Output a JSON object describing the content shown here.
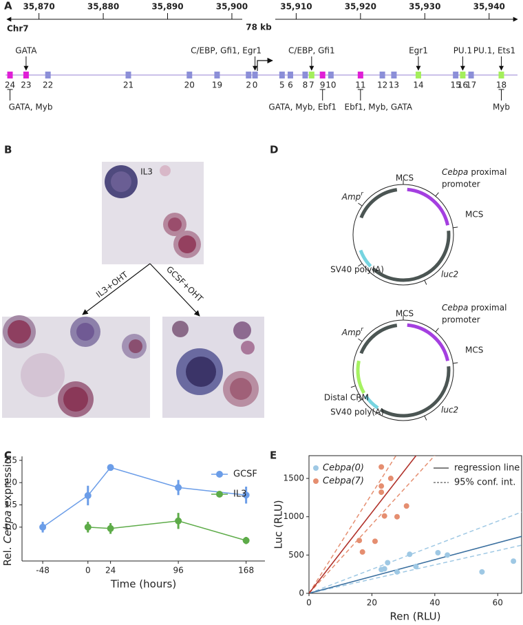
{
  "panel_labels": {
    "a": "A",
    "b": "B",
    "c": "C",
    "d": "D",
    "e": "E"
  },
  "genome_track": {
    "xlim": [
      35864.8,
      35944.2
    ],
    "xticks": [
      {
        "value": 35870,
        "label": "35,870"
      },
      {
        "value": 35880,
        "label": "35,880"
      },
      {
        "value": 35890,
        "label": "35,890"
      },
      {
        "value": 35900,
        "label": "35,900"
      },
      {
        "value": 35910,
        "label": "35,910"
      },
      {
        "value": 35920,
        "label": "35,920"
      },
      {
        "value": 35930,
        "label": "35,930"
      },
      {
        "value": 35940,
        "label": "35,940"
      }
    ],
    "chromosome": "Chr7",
    "span": "78 kb",
    "elements": [
      {
        "label": "24",
        "position": 35865.5,
        "color": "#e01fd6",
        "below": "GATA, Myb"
      },
      {
        "label": "23",
        "position": 35868.0,
        "color": "#e01fd6",
        "above": "GATA"
      },
      {
        "label": "22",
        "position": 35871.4,
        "color": "#8c8fd8"
      },
      {
        "label": "21",
        "position": 35883.9,
        "color": "#8c8fd8"
      },
      {
        "label": "20",
        "position": 35893.4,
        "color": "#8c8fd8"
      },
      {
        "label": "19",
        "position": 35897.7,
        "color": "#8c8fd8"
      },
      {
        "label": "2",
        "position": 35902.6,
        "color": "#8c8fd8"
      },
      {
        "label": "0",
        "position": 35903.6,
        "color": "#8c8fd8",
        "above": "C/EBP, Gfi1, Egr1"
      },
      {
        "label": "5",
        "position": 35907.8,
        "color": "#8c8fd8"
      },
      {
        "label": "6",
        "position": 35909.1,
        "color": "#8c8fd8"
      },
      {
        "label": "8",
        "position": 35911.4,
        "color": "#8c8fd8"
      },
      {
        "label": "7",
        "position": 35912.4,
        "color": "#a4ee5c",
        "above": "C/EBP, Gfi1"
      },
      {
        "label": "9",
        "position": 35914.1,
        "color": "#e01fd6",
        "below": "GATA, Myb, Ebf1"
      },
      {
        "label": "10",
        "position": 35915.4,
        "color": "#8c8fd8"
      },
      {
        "label": "11",
        "position": 35920.0,
        "color": "#e01fd6",
        "below": "Ebf1, Myb, GATA"
      },
      {
        "label": "12",
        "position": 35923.4,
        "color": "#8c8fd8"
      },
      {
        "label": "13",
        "position": 35925.2,
        "color": "#8c8fd8"
      },
      {
        "label": "14",
        "position": 35929.0,
        "color": "#a4ee5c",
        "above": "Egr1"
      },
      {
        "label": "15",
        "position": 35934.8,
        "color": "#8c8fd8"
      },
      {
        "label": "16",
        "position": 35935.9,
        "color": "#a4ee5c",
        "above": "PU.1"
      },
      {
        "label": "17",
        "position": 35937.2,
        "color": "#8c8fd8"
      },
      {
        "label": "18",
        "position": 35941.9,
        "color": "#a4ee5c",
        "above": "PU.1, Ets1",
        "below": "Myb"
      }
    ]
  },
  "micrographs": {
    "top": "IL3",
    "left": "IL3+OHT",
    "right": "GCSF+OHT"
  },
  "plasmids": [
    {
      "mcs_top": "MCS",
      "amp": "Amp",
      "amp_sup": "r",
      "promoter": [
        "Cebpa",
        "proximal",
        "promoter"
      ],
      "mcs_right": "MCS",
      "luc": "luc2",
      "sv40": "SV40 poly(A)"
    },
    {
      "mcs_top": "MCS",
      "amp": "Amp",
      "amp_sup": "r",
      "promoter": [
        "Cebpa",
        "proximal",
        "promoter"
      ],
      "mcs_right": "MCS",
      "luc": "luc2",
      "sv40": "SV40 poly(A)",
      "crm": "Distal CRM"
    }
  ],
  "chart_data": [
    {
      "type": "line",
      "x_label": "Time (hours)",
      "y_label": [
        "Rel.",
        "Cebpa",
        "expression"
      ],
      "x": [
        -48,
        0,
        24,
        96,
        168
      ],
      "xlim": [
        -70,
        188
      ],
      "xticks": [
        -48,
        0,
        24,
        96,
        168
      ],
      "ylim": [
        0.24,
        2.59
      ],
      "yticks": [
        {
          "value": 1.0,
          "label": "1.0"
        },
        1.5,
        {
          "value": 2.0,
          "label": "2.0"
        },
        2.5
      ],
      "legend": "upper right",
      "series": [
        {
          "name": "GCSF",
          "color": "#6b9de8",
          "values": [
            1.0,
            1.71,
            2.34,
            1.89,
            1.72
          ],
          "errors": [
            0.12,
            0.22,
            0.06,
            0.17,
            0.19
          ]
        },
        {
          "name": "IL3",
          "color": "#5dab48",
          "values": [
            null,
            1.0,
            0.97,
            1.14,
            0.7
          ],
          "errors": [
            null,
            0.12,
            0.12,
            0.18,
            0.08
          ]
        }
      ]
    },
    {
      "type": "scatter",
      "x_label": "Ren (RLU)",
      "y_label": "Luc (RLU)",
      "xlim": [
        0,
        67.6
      ],
      "ylim": [
        0,
        1797
      ],
      "xticks": [
        0,
        20,
        40,
        60
      ],
      "yticks": [
        0,
        500,
        1000,
        1500
      ],
      "legend": "upper left",
      "fit_legend": [
        "regression line",
        "95% conf. int."
      ],
      "series": [
        {
          "name": "Cebpa(0)",
          "color": "#9ec8e4",
          "line_color": "#3a6f9f",
          "x": [
            23,
            24,
            25,
            28,
            32,
            34,
            41,
            44,
            55,
            65
          ],
          "values": [
            310,
            320,
            400,
            280,
            510,
            350,
            530,
            500,
            280,
            420
          ],
          "fit_slope": 11,
          "ci_slopes": [
            9.3,
            15.7
          ]
        },
        {
          "name": "Cebpa(7)",
          "color": "#e58e70",
          "line_color": "#b0312a",
          "x": [
            16,
            17,
            21,
            23,
            23,
            23,
            24,
            26,
            28,
            31
          ],
          "values": [
            690,
            540,
            680,
            1650,
            1400,
            1320,
            1010,
            1500,
            1000,
            1140
          ],
          "fit_slope": 52.8,
          "ci_slopes": [
            45,
            65
          ]
        }
      ]
    }
  ]
}
